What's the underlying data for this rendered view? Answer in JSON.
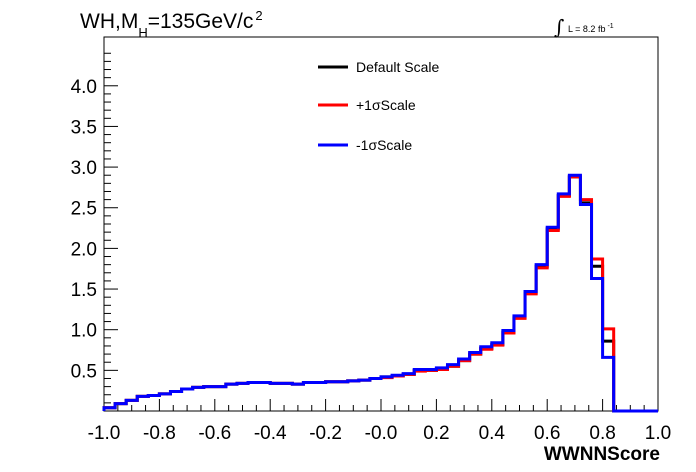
{
  "chart_data": {
    "type": "line",
    "title": {
      "main": "WH,M",
      "sub": "H",
      "value": "=135GeV/c",
      "sup": "2"
    },
    "luminosity": {
      "symbol": "∫",
      "text": "L = 8.2 fb",
      "sup": "-1"
    },
    "xlabel": "WWNNScore",
    "ylabel": "",
    "xlim": [
      -1.0,
      1.0
    ],
    "ylim": [
      0.0,
      4.6
    ],
    "x_ticks": [
      "-1.0",
      "-0.8",
      "-0.6",
      "-0.4",
      "-0.2",
      "-0.0",
      "0.2",
      "0.4",
      "0.6",
      "0.8",
      "1.0"
    ],
    "x_tick_values": [
      -1.0,
      -0.8,
      -0.6,
      -0.4,
      -0.2,
      0.0,
      0.2,
      0.4,
      0.6,
      0.8,
      1.0
    ],
    "y_ticks": [
      "0.5",
      "1.0",
      "1.5",
      "2.0",
      "2.5",
      "3.0",
      "3.5",
      "4.0"
    ],
    "y_tick_values": [
      0.5,
      1.0,
      1.5,
      2.0,
      2.5,
      3.0,
      3.5,
      4.0
    ],
    "bin_edges": [
      -1.0,
      -0.96,
      -0.92,
      -0.88,
      -0.84,
      -0.8,
      -0.76,
      -0.72,
      -0.68,
      -0.64,
      -0.6,
      -0.56,
      -0.52,
      -0.48,
      -0.44,
      -0.4,
      -0.36,
      -0.32,
      -0.28,
      -0.24,
      -0.2,
      -0.16,
      -0.12,
      -0.08,
      -0.04,
      0.0,
      0.04,
      0.08,
      0.12,
      0.16,
      0.2,
      0.24,
      0.28,
      0.32,
      0.36,
      0.4,
      0.44,
      0.48,
      0.52,
      0.56,
      0.6,
      0.64,
      0.68,
      0.72,
      0.76,
      0.8,
      0.84,
      0.88,
      0.92,
      0.96,
      1.0
    ],
    "series": [
      {
        "name": "Default Scale",
        "color": "#000000",
        "values": [
          0.04,
          0.09,
          0.13,
          0.18,
          0.19,
          0.21,
          0.24,
          0.27,
          0.29,
          0.3,
          0.3,
          0.33,
          0.34,
          0.35,
          0.35,
          0.34,
          0.34,
          0.33,
          0.35,
          0.35,
          0.36,
          0.36,
          0.37,
          0.38,
          0.4,
          0.42,
          0.43,
          0.45,
          0.5,
          0.5,
          0.52,
          0.55,
          0.62,
          0.7,
          0.77,
          0.82,
          0.97,
          1.15,
          1.45,
          1.78,
          2.24,
          2.65,
          2.88,
          2.56,
          1.78,
          0.86,
          0.0,
          0.0,
          0.0,
          0.0
        ]
      },
      {
        "name": "+1σScale",
        "color": "#ff0000",
        "values": [
          0.04,
          0.09,
          0.13,
          0.18,
          0.19,
          0.21,
          0.24,
          0.27,
          0.29,
          0.3,
          0.3,
          0.33,
          0.34,
          0.35,
          0.35,
          0.34,
          0.34,
          0.33,
          0.35,
          0.35,
          0.36,
          0.36,
          0.37,
          0.38,
          0.4,
          0.41,
          0.43,
          0.45,
          0.49,
          0.5,
          0.51,
          0.55,
          0.62,
          0.7,
          0.76,
          0.81,
          0.96,
          1.14,
          1.44,
          1.76,
          2.22,
          2.64,
          2.88,
          2.6,
          1.87,
          1.01,
          0.0,
          0.0,
          0.0,
          0.0
        ]
      },
      {
        "name": "-1σScale",
        "color": "#0000ff",
        "values": [
          0.04,
          0.09,
          0.13,
          0.18,
          0.19,
          0.21,
          0.24,
          0.27,
          0.29,
          0.3,
          0.3,
          0.33,
          0.34,
          0.35,
          0.35,
          0.34,
          0.34,
          0.33,
          0.35,
          0.35,
          0.36,
          0.36,
          0.37,
          0.38,
          0.4,
          0.42,
          0.44,
          0.46,
          0.51,
          0.51,
          0.53,
          0.57,
          0.64,
          0.72,
          0.79,
          0.84,
          0.99,
          1.17,
          1.47,
          1.8,
          2.26,
          2.67,
          2.9,
          2.54,
          1.63,
          0.66,
          0.0,
          0.0,
          0.0,
          0.0
        ]
      }
    ],
    "grid": false,
    "legend_position": "top-center"
  }
}
